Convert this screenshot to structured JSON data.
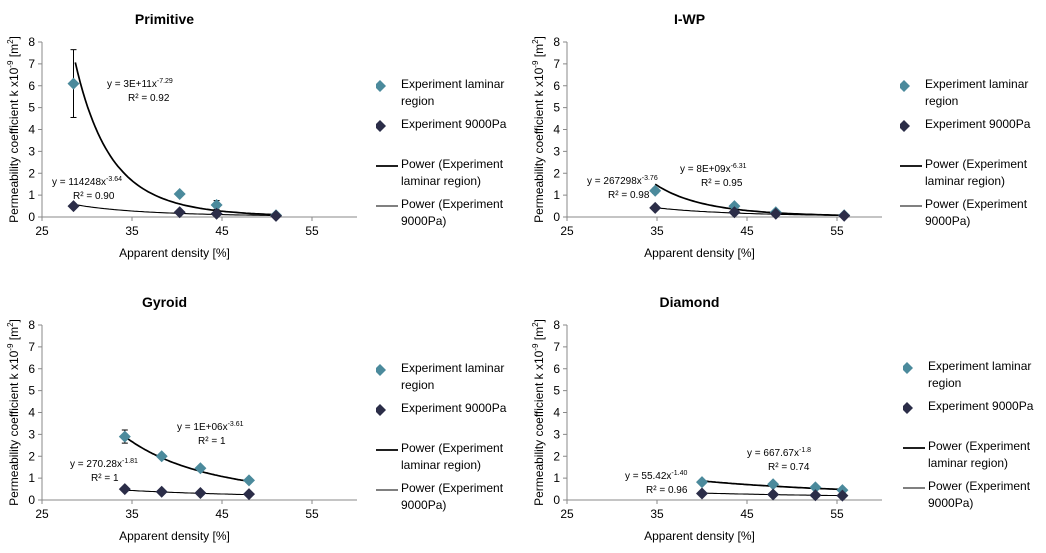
{
  "chart_data": [
    {
      "type": "scatter",
      "title": "Primitive",
      "xlabel": "Apparent density [%]",
      "ylabel": "Permeability coefficient k x10^-9 [m^2]",
      "xlim": [
        25,
        60
      ],
      "ylim": [
        0,
        8
      ],
      "xticks": [
        "25",
        "35",
        "45",
        "55"
      ],
      "yticks": [
        "0",
        "1",
        "2",
        "3",
        "4",
        "5",
        "6",
        "7",
        "8"
      ],
      "series": [
        {
          "name": "Experiment laminar region",
          "x": [
            28.5,
            40.3,
            44.4,
            51
          ],
          "y": [
            6.1,
            1.05,
            0.55,
            0.08
          ],
          "err": [
            1.55,
            0,
            0.2,
            0
          ]
        },
        {
          "name": "Experiment 9000Pa",
          "x": [
            28.5,
            40.3,
            44.4,
            51
          ],
          "y": [
            0.5,
            0.22,
            0.15,
            0.05
          ]
        }
      ],
      "fits": [
        {
          "name": "Power (Experiment laminar region)",
          "a": 300000000000.0,
          "b": -7.29,
          "xrange": [
            28.7,
            51
          ],
          "eq_pre": "y = 3E+11x",
          "eq_exp": "-7.29",
          "r2": "R² = 0.92",
          "width": 1.7
        },
        {
          "name": "Power (Experiment 9000Pa)",
          "a": 114248,
          "b": -3.64,
          "xrange": [
            28.5,
            51
          ],
          "eq_pre": "y = 114248x",
          "eq_exp": "-3.64",
          "r2": "R² = 0.90",
          "width": 1.1
        }
      ]
    },
    {
      "type": "scatter",
      "title": "I-WP",
      "xlabel": "Apparent density [%]",
      "ylabel": "Permeability coefficient k x10^-9 [m^2]",
      "xlim": [
        25,
        60
      ],
      "ylim": [
        0,
        8
      ],
      "xticks": [
        "25",
        "35",
        "45",
        "55"
      ],
      "yticks": [
        "0",
        "1",
        "2",
        "3",
        "4",
        "5",
        "6",
        "7",
        "8"
      ],
      "series": [
        {
          "name": "Experiment laminar region",
          "x": [
            34.8,
            43.6,
            48.2,
            55.8
          ],
          "y": [
            1.2,
            0.5,
            0.22,
            0.08
          ],
          "err": [
            0.12,
            0,
            0,
            0
          ]
        },
        {
          "name": "Experiment 9000Pa",
          "x": [
            34.8,
            43.6,
            48.2,
            55.8
          ],
          "y": [
            0.42,
            0.22,
            0.15,
            0.06
          ]
        }
      ],
      "fits": [
        {
          "name": "Power (Experiment laminar region)",
          "a": 8000000000.0,
          "b": -6.31,
          "xrange": [
            34.8,
            55.8
          ],
          "eq_pre": "y = 8E+09x",
          "eq_exp": "-6.31",
          "r2": "R² = 0.95",
          "width": 1.7
        },
        {
          "name": "Power (Experiment 9000Pa)",
          "a": 267298,
          "b": -3.76,
          "xrange": [
            34.8,
            55.8
          ],
          "eq_pre": "y = 267298x",
          "eq_exp": "-3.76",
          "r2": "R² = 0.98",
          "width": 1.1
        }
      ]
    },
    {
      "type": "scatter",
      "title": "Gyroid",
      "xlabel": "Apparent density [%]",
      "ylabel": "Permeability coefficient k x10^-9 [m^2]",
      "xlim": [
        25,
        60
      ],
      "ylim": [
        0,
        8
      ],
      "xticks": [
        "25",
        "35",
        "45",
        "55"
      ],
      "yticks": [
        "0",
        "1",
        "2",
        "3",
        "4",
        "5",
        "6",
        "7",
        "8"
      ],
      "series": [
        {
          "name": "Experiment laminar region",
          "x": [
            34.2,
            38.3,
            42.6,
            48
          ],
          "y": [
            2.9,
            2.0,
            1.45,
            0.9
          ],
          "err": [
            0.3,
            0,
            0,
            0
          ]
        },
        {
          "name": "Experiment 9000Pa",
          "x": [
            34.2,
            38.3,
            42.6,
            48
          ],
          "y": [
            0.5,
            0.38,
            0.32,
            0.27
          ]
        }
      ],
      "fits": [
        {
          "name": "Power (Experiment laminar region)",
          "a": 1000000.0,
          "b": -3.61,
          "xrange": [
            34.2,
            48
          ],
          "eq_pre": "y = 1E+06x",
          "eq_exp": "-3.61",
          "r2": "R² = 1",
          "width": 1.7
        },
        {
          "name": "Power (Experiment 9000Pa)",
          "a": 270.28,
          "b": -1.81,
          "xrange": [
            34.2,
            48
          ],
          "eq_pre": "y = 270.28x",
          "eq_exp": "-1.81",
          "r2": "R² = 1",
          "width": 1.1
        }
      ]
    },
    {
      "type": "scatter",
      "title": "Diamond",
      "xlabel": "Apparent density [%]",
      "ylabel": "Permeability coefficient k x10^-9 [m^2]",
      "xlim": [
        25,
        60
      ],
      "ylim": [
        0,
        8
      ],
      "xticks": [
        "25",
        "35",
        "45",
        "55"
      ],
      "yticks": [
        "0",
        "1",
        "2",
        "3",
        "4",
        "5",
        "6",
        "7",
        "8"
      ],
      "series": [
        {
          "name": "Experiment laminar region",
          "x": [
            40,
            47.9,
            52.6,
            55.6
          ],
          "y": [
            0.82,
            0.72,
            0.58,
            0.45
          ],
          "err": [
            0,
            0,
            0,
            0
          ]
        },
        {
          "name": "Experiment 9000Pa",
          "x": [
            40,
            47.9,
            52.6,
            55.6
          ],
          "y": [
            0.3,
            0.25,
            0.22,
            0.2
          ]
        }
      ],
      "fits": [
        {
          "name": "Power (Experiment laminar region)",
          "a": 667.67,
          "b": -1.8,
          "xrange": [
            40,
            55.6
          ],
          "eq_pre": "y = 667.67x",
          "eq_exp": "-1.8",
          "r2": "R² = 0.74",
          "width": 1.7
        },
        {
          "name": "Power (Experiment 9000Pa)",
          "a": 55.42,
          "b": -1.4,
          "xrange": [
            40,
            55.6
          ],
          "eq_pre": "y = 55.42x",
          "eq_exp": "-1.40",
          "r2": "R² = 0.96",
          "width": 1.1
        }
      ]
    }
  ],
  "legend": {
    "laminar": "Experiment laminar region",
    "p9000": "Experiment 9000Pa",
    "power_laminar": "Power (Experiment laminar region)",
    "power_9000": "Power (Experiment 9000Pa)"
  },
  "colors": {
    "laminar": "#4b8a9c",
    "p9000": "#2b2d48",
    "line": "#000000",
    "axis": "#888888"
  }
}
